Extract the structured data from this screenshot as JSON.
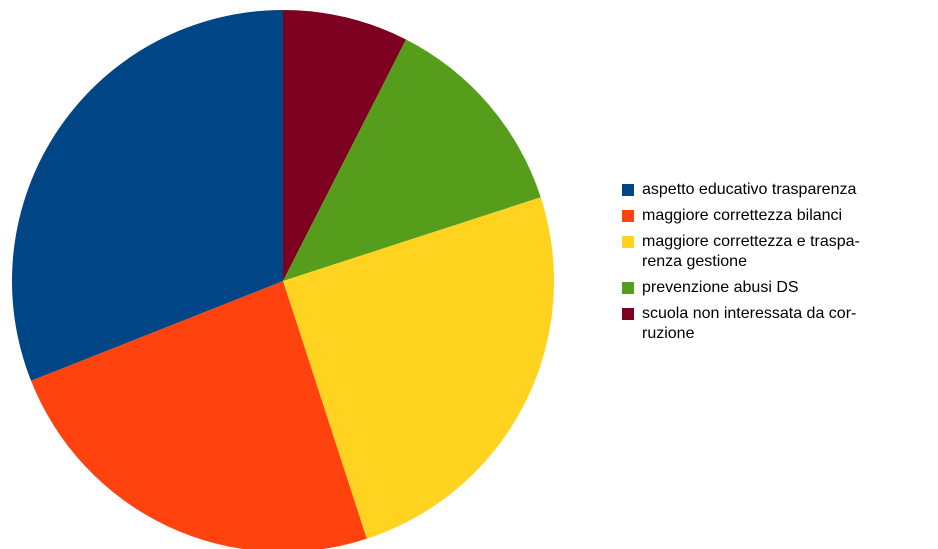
{
  "chart_data": {
    "type": "pie",
    "title": "",
    "start_angle_deg": 0,
    "direction": "clockwise",
    "legend_position": "right",
    "slices": [
      {
        "label": "scuola non interessata da cor-\nruzione",
        "value": 7.5,
        "color": "#7e0021"
      },
      {
        "label": "prevenzione abusi DS",
        "value": 12.5,
        "color": "#579d1c"
      },
      {
        "label": "maggiore correttezza e traspa-\nrenza gestione",
        "value": 25,
        "color": "#ffd320"
      },
      {
        "label": "maggiore correttezza bilanci",
        "value": 24,
        "color": "#ff420e"
      },
      {
        "label": "aspetto educativo trasparenza",
        "value": 31,
        "color": "#004586"
      }
    ],
    "legend_order": [
      "aspetto educativo trasparenza",
      "maggiore correttezza bilanci",
      "maggiore correttezza e traspa-\nrenza gestione",
      "prevenzione abusi DS",
      "scuola non interessata da cor-\nruzione"
    ]
  }
}
